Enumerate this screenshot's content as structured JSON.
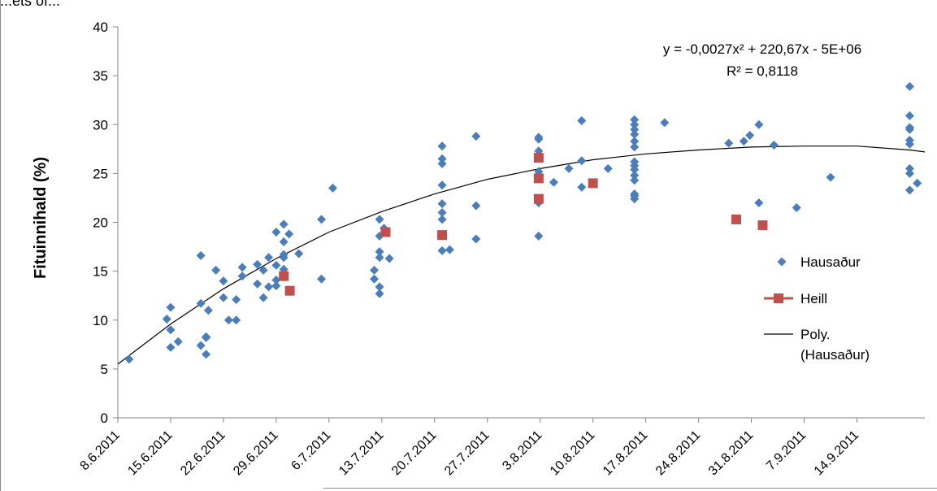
{
  "chart_data": {
    "type": "scatter",
    "clipped_title": "...ets of...",
    "ylabel": "Fituinnihald (%)",
    "xlabel": "",
    "ylim": [
      0,
      40
    ],
    "yticks": [
      0,
      5,
      10,
      15,
      20,
      25,
      30,
      35,
      40
    ],
    "xlim": [
      "2011-06-08",
      "2011-09-23"
    ],
    "xticks": [
      "8.6.2011",
      "15.6.2011",
      "22.6.2011",
      "29.6.2011",
      "6.7.2011",
      "13.7.2011",
      "20.7.2011",
      "27.7.2011",
      "3.8.2011",
      "10.8.2011",
      "17.8.2011",
      "24.8.2011",
      "31.8.2011",
      "7.9.2011",
      "14.9.2011"
    ],
    "grid": false,
    "legend_placement": "right",
    "trendline_equation": "y = -0,0027x² + 220,67x - 5E+06",
    "trendline_r2": "R² = 0,8118",
    "series": [
      {
        "name": "Hausaður",
        "color": "#4a7ebb",
        "marker": "diamond",
        "points": [
          [
            "2011-06-09.5",
            6.0
          ],
          [
            "2011-06-14.5",
            10.1
          ],
          [
            "2011-06-15",
            11.3
          ],
          [
            "2011-06-15",
            9.0
          ],
          [
            "2011-06-15",
            7.2
          ],
          [
            "2011-06-16",
            7.8
          ],
          [
            "2011-06-19",
            16.6
          ],
          [
            "2011-06-19",
            11.7
          ],
          [
            "2011-06-19",
            7.4
          ],
          [
            "2011-06-19.7",
            8.3
          ],
          [
            "2011-06-19.7",
            8.2
          ],
          [
            "2011-06-19.7",
            6.5
          ],
          [
            "2011-06-20",
            11.0
          ],
          [
            "2011-06-21",
            15.1
          ],
          [
            "2011-06-22",
            14.0
          ],
          [
            "2011-06-22",
            12.3
          ],
          [
            "2011-06-22.7",
            10.0
          ],
          [
            "2011-06-23.7",
            12.1
          ],
          [
            "2011-06-23.7",
            10.0
          ],
          [
            "2011-06-24.5",
            15.4
          ],
          [
            "2011-06-24.5",
            14.5
          ],
          [
            "2011-06-26.5",
            15.7
          ],
          [
            "2011-06-26.5",
            13.7
          ],
          [
            "2011-06-27.3",
            15.1
          ],
          [
            "2011-06-27.3",
            12.3
          ],
          [
            "2011-06-28",
            16.4
          ],
          [
            "2011-06-28",
            13.4
          ],
          [
            "2011-06-29",
            19.0
          ],
          [
            "2011-06-29",
            15.6
          ],
          [
            "2011-06-29",
            14.1
          ],
          [
            "2011-06-29",
            13.5
          ],
          [
            "2011-06-30",
            19.8
          ],
          [
            "2011-06-30",
            18.0
          ],
          [
            "2011-06-30",
            16.7
          ],
          [
            "2011-06-30",
            16.4
          ],
          [
            "2011-06-30",
            15.2
          ],
          [
            "2011-06-30",
            14.4
          ],
          [
            "2011-06-30.7",
            18.8
          ],
          [
            "2011-07-02",
            16.8
          ],
          [
            "2011-07-05",
            20.3
          ],
          [
            "2011-07-05",
            14.2
          ],
          [
            "2011-07-06.5",
            23.5
          ],
          [
            "2011-07-12",
            15.1
          ],
          [
            "2011-07-12",
            14.2
          ],
          [
            "2011-07-12.7",
            20.3
          ],
          [
            "2011-07-12.7",
            18.6
          ],
          [
            "2011-07-12.7",
            17.0
          ],
          [
            "2011-07-12.7",
            16.4
          ],
          [
            "2011-07-12.7",
            13.4
          ],
          [
            "2011-07-12.7",
            12.7
          ],
          [
            "2011-07-13.3",
            19.4
          ],
          [
            "2011-07-14",
            16.3
          ],
          [
            "2011-07-21",
            27.8
          ],
          [
            "2011-07-21",
            26.5
          ],
          [
            "2011-07-21",
            26.0
          ],
          [
            "2011-07-21",
            23.8
          ],
          [
            "2011-07-21",
            21.9
          ],
          [
            "2011-07-21",
            21.0
          ],
          [
            "2011-07-21",
            20.3
          ],
          [
            "2011-07-21",
            17.1
          ],
          [
            "2011-07-22",
            17.2
          ],
          [
            "2011-07-25.5",
            28.8
          ],
          [
            "2011-07-25.5",
            21.7
          ],
          [
            "2011-07-25.5",
            18.3
          ],
          [
            "2011-08-02.8",
            28.7
          ],
          [
            "2011-08-02.8",
            28.5
          ],
          [
            "2011-08-02.8",
            27.3
          ],
          [
            "2011-08-02.8",
            25.2
          ],
          [
            "2011-08-02.8",
            22.0
          ],
          [
            "2011-08-02.8",
            18.6
          ],
          [
            "2011-08-04.8",
            24.1
          ],
          [
            "2011-08-06.8",
            25.5
          ],
          [
            "2011-08-08.5",
            30.4
          ],
          [
            "2011-08-08.5",
            26.3
          ],
          [
            "2011-08-08.5",
            23.6
          ],
          [
            "2011-08-12",
            25.5
          ],
          [
            "2011-08-15.5",
            30.5
          ],
          [
            "2011-08-15.5",
            30.0
          ],
          [
            "2011-08-15.5",
            29.5
          ],
          [
            "2011-08-15.5",
            29.0
          ],
          [
            "2011-08-15.5",
            28.3
          ],
          [
            "2011-08-15.5",
            27.7
          ],
          [
            "2011-08-15.5",
            26.2
          ],
          [
            "2011-08-15.5",
            25.8
          ],
          [
            "2011-08-15.5",
            25.4
          ],
          [
            "2011-08-15.5",
            24.8
          ],
          [
            "2011-08-15.5",
            24.3
          ],
          [
            "2011-08-15.5",
            22.9
          ],
          [
            "2011-08-15.5",
            22.7
          ],
          [
            "2011-08-15.5",
            22.4
          ],
          [
            "2011-08-19.5",
            30.2
          ],
          [
            "2011-08-28",
            28.1
          ],
          [
            "2011-08-30",
            28.3
          ],
          [
            "2011-08-30.8",
            28.9
          ],
          [
            "2011-09-01",
            30.0
          ],
          [
            "2011-09-01",
            22.0
          ],
          [
            "2011-09-03",
            27.9
          ],
          [
            "2011-09-06",
            21.5
          ],
          [
            "2011-09-10.5",
            24.6
          ],
          [
            "2011-09-21",
            33.9
          ],
          [
            "2011-09-21",
            30.9
          ],
          [
            "2011-09-21",
            29.7
          ],
          [
            "2011-09-21",
            29.5
          ],
          [
            "2011-09-21",
            28.4
          ],
          [
            "2011-09-21",
            28.0
          ],
          [
            "2011-09-21",
            25.5
          ],
          [
            "2011-09-21",
            25.0
          ],
          [
            "2011-09-21",
            23.3
          ],
          [
            "2011-09-22",
            24.0
          ]
        ]
      },
      {
        "name": "Heill",
        "color": "#c0504d",
        "marker": "square",
        "points": [
          [
            "2011-06-30",
            14.5
          ],
          [
            "2011-06-30.8",
            13.0
          ],
          [
            "2011-07-13.5",
            19.0
          ],
          [
            "2011-07-21",
            18.7
          ],
          [
            "2011-08-02.8",
            26.6
          ],
          [
            "2011-08-02.8",
            24.5
          ],
          [
            "2011-08-02.8",
            22.4
          ],
          [
            "2011-08-10",
            24.0
          ],
          [
            "2011-08-29",
            20.3
          ],
          [
            "2011-09-01.5",
            19.7
          ]
        ]
      },
      {
        "name": "Poly. (Hausaður)",
        "color": "#000000",
        "type": "line",
        "points": [
          [
            "2011-06-08",
            5.5
          ],
          [
            "2011-06-15",
            9.6
          ],
          [
            "2011-06-22",
            13.2
          ],
          [
            "2011-06-29",
            16.3
          ],
          [
            "2011-07-06",
            19.0
          ],
          [
            "2011-07-13",
            21.1
          ],
          [
            "2011-07-20",
            22.9
          ],
          [
            "2011-07-27",
            24.4
          ],
          [
            "2011-08-03",
            25.5
          ],
          [
            "2011-08-10",
            26.4
          ],
          [
            "2011-08-17",
            27.0
          ],
          [
            "2011-08-24",
            27.4
          ],
          [
            "2011-08-31",
            27.7
          ],
          [
            "2011-09-07",
            27.8
          ],
          [
            "2011-09-14",
            27.8
          ],
          [
            "2011-09-21",
            27.4
          ],
          [
            "2011-09-23",
            27.2
          ]
        ]
      }
    ]
  }
}
